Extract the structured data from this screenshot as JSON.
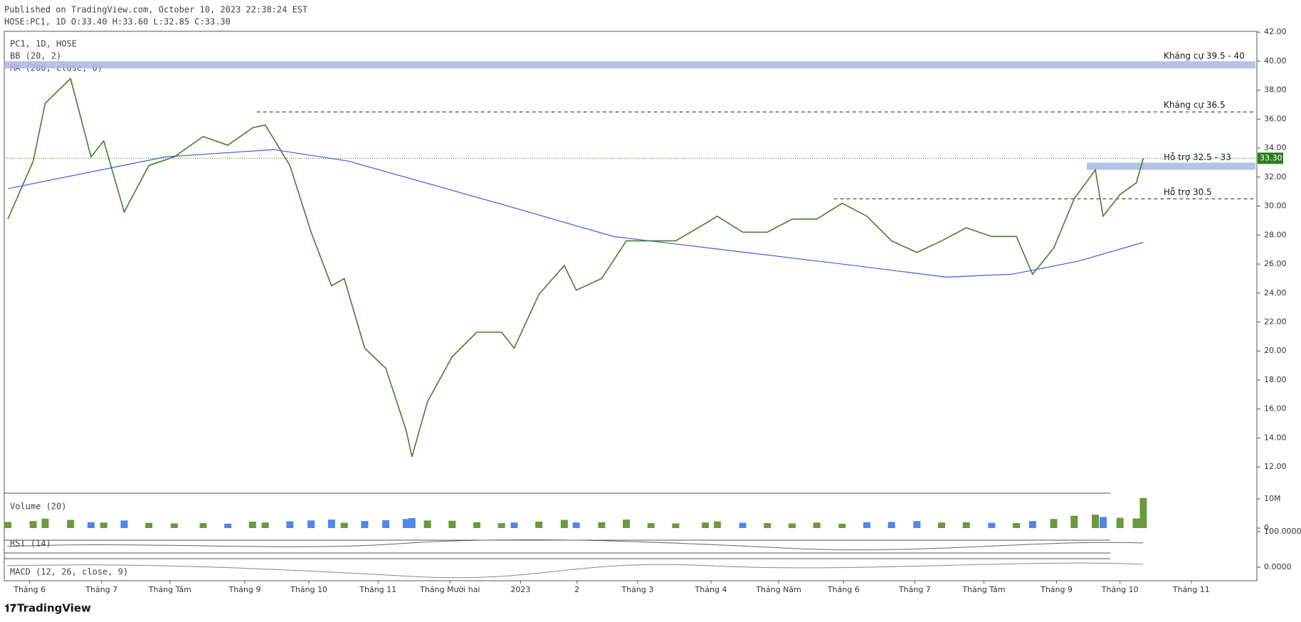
{
  "header": {
    "published": "Published on TradingView.com, October 10, 2023 22:38:24 EST",
    "ohlc": "HOSE:PC1, 1D O:33.40 H:33.60 L:32.85 C:33.30"
  },
  "footer": {
    "brand": "TradingView"
  },
  "chart_data": [
    {
      "type": "line",
      "series": [
        {
          "name": "PC1, 1D, HOSE",
          "color": "#4b7a2b",
          "x": [
            -0.31,
            0.05,
            0.22,
            0.58,
            0.87,
            1.05,
            1.34,
            1.69,
            2.05,
            2.46,
            2.81,
            3.16,
            3.34,
            3.69,
            3.99,
            4.28,
            4.46,
            4.75,
            5.05,
            5.34,
            5.42,
            5.64,
            5.99,
            6.34,
            6.69,
            6.87,
            7.22,
            7.58,
            7.75,
            8.11,
            8.46,
            8.81,
            9.16,
            9.58,
            9.75,
            10.11,
            10.46,
            10.81,
            11.16,
            11.52,
            11.87,
            12.22,
            12.58,
            12.93,
            13.28,
            13.64,
            13.99,
            14.22,
            14.52,
            14.81,
            15.11,
            15.22,
            15.46,
            15.69,
            15.79
          ],
          "values": [
            29.1,
            33.1,
            37.1,
            38.8,
            33.4,
            34.5,
            29.6,
            32.8,
            33.4,
            34.8,
            34.2,
            35.4,
            35.6,
            32.8,
            28.2,
            24.5,
            25.0,
            20.2,
            18.8,
            14.5,
            12.7,
            16.5,
            19.6,
            21.3,
            21.3,
            20.2,
            23.9,
            25.9,
            24.2,
            25.0,
            27.6,
            27.6,
            27.6,
            28.8,
            29.3,
            28.2,
            28.2,
            29.1,
            29.1,
            30.2,
            29.3,
            27.6,
            26.8,
            27.6,
            28.5,
            27.9,
            27.9,
            25.3,
            27.1,
            30.5,
            32.5,
            29.3,
            30.8,
            31.6,
            33.3
          ]
        },
        {
          "name": "MA (200, close, 0)",
          "color": "#3f5fd6",
          "x": [
            -0.31,
            1.93,
            3.46,
            4.52,
            6.64,
            8.28,
            10.16,
            11.69,
            12.99,
            13.93,
            14.87,
            15.79
          ],
          "values": [
            31.2,
            33.4,
            33.9,
            33.1,
            30.2,
            27.9,
            26.8,
            25.9,
            25.1,
            25.3,
            26.2,
            27.5
          ]
        }
      ],
      "indicator": "BB (20, 2)",
      "xlim": [
        -0.35,
        17.38
      ],
      "ylim": [
        10.19,
        42.06
      ],
      "xticks": [
        {
          "value": 0,
          "label": "Tháng 6"
        },
        {
          "value": 1.02,
          "label": "Tháng 7"
        },
        {
          "value": 1.99,
          "label": "Tháng Tám"
        },
        {
          "value": 3.05,
          "label": "Tháng 9"
        },
        {
          "value": 3.96,
          "label": "Tháng 10"
        },
        {
          "value": 4.94,
          "label": "Tháng 11"
        },
        {
          "value": 5.96,
          "label": "Tháng Mười hai"
        },
        {
          "value": 6.96,
          "label": "2023"
        },
        {
          "value": 7.76,
          "label": "2"
        },
        {
          "value": 8.62,
          "label": "Tháng 3"
        },
        {
          "value": 9.66,
          "label": "Tháng 4"
        },
        {
          "value": 10.62,
          "label": "Tháng Năm"
        },
        {
          "value": 11.54,
          "label": "Tháng 6"
        },
        {
          "value": 12.55,
          "label": "Tháng 7"
        },
        {
          "value": 13.53,
          "label": "Tháng Tám"
        },
        {
          "value": 14.56,
          "label": "Tháng 9"
        },
        {
          "value": 15.46,
          "label": "Tháng 10"
        },
        {
          "value": 16.47,
          "label": "Tháng 11"
        }
      ],
      "yticks": [
        {
          "value": 12,
          "label": "12.00"
        },
        {
          "value": 14,
          "label": "14.00"
        },
        {
          "value": 16,
          "label": "16.00"
        },
        {
          "value": 18,
          "label": "18.00"
        },
        {
          "value": 20,
          "label": "20.00"
        },
        {
          "value": 22,
          "label": "22.00"
        },
        {
          "value": 24,
          "label": "24.00"
        },
        {
          "value": 26,
          "label": "26.00"
        },
        {
          "value": 28,
          "label": "28.00"
        },
        {
          "value": 30,
          "label": "30.00"
        },
        {
          "value": 32,
          "label": "32.00"
        },
        {
          "value": 34,
          "label": "34.00"
        },
        {
          "value": 36,
          "label": "36.00"
        },
        {
          "value": 38,
          "label": "38.00"
        },
        {
          "value": 40,
          "label": "40.00"
        },
        {
          "value": 42,
          "label": "42.00"
        }
      ],
      "zones": [
        {
          "label": "Kháng cự 39.5 - 40",
          "from": 39.5,
          "to": 40
        },
        {
          "label": "Hỗ trợ 32.5 - 33",
          "from": 32.5,
          "to": 33,
          "start": 14.99
        }
      ],
      "levels": [
        {
          "label": "Kháng cự 36.5",
          "value": 36.5,
          "start": 3.22
        },
        {
          "label": "Hỗ trợ 30.5",
          "value": 30.5,
          "start": 11.4
        }
      ],
      "last_value": 33.3,
      "last_value_label": "33.30",
      "last_color": "#2e7d20"
    },
    {
      "type": "bar",
      "title": "Volume (20)",
      "color": "#4f86e8",
      "up_color": "#6a9a3c",
      "x": [
        -0.31,
        0.05,
        0.22,
        0.58,
        0.87,
        1.05,
        1.34,
        1.69,
        2.05,
        2.46,
        2.81,
        3.16,
        3.34,
        3.69,
        3.99,
        4.28,
        4.46,
        4.75,
        5.05,
        5.34,
        5.42,
        5.64,
        5.99,
        6.34,
        6.69,
        6.87,
        7.22,
        7.58,
        7.75,
        8.11,
        8.46,
        8.81,
        9.16,
        9.58,
        9.75,
        10.11,
        10.46,
        10.81,
        11.16,
        11.52,
        11.87,
        12.22,
        12.58,
        12.93,
        13.28,
        13.64,
        13.99,
        14.22,
        14.52,
        14.81,
        15.11,
        15.22,
        15.46,
        15.69,
        15.79
      ],
      "values": [
        2100000,
        2400000,
        3200000,
        2800000,
        2000000,
        1900000,
        2600000,
        1800000,
        1600000,
        1700000,
        1500000,
        2200000,
        1900000,
        2300000,
        2600000,
        2900000,
        1800000,
        2400000,
        2700000,
        3100000,
        3400000,
        2600000,
        2500000,
        2000000,
        1700000,
        1900000,
        2200000,
        2800000,
        1900000,
        2000000,
        2900000,
        1700000,
        1600000,
        1900000,
        2300000,
        1800000,
        1700000,
        1600000,
        1900000,
        1500000,
        2000000,
        2100000,
        2400000,
        1900000,
        2000000,
        1800000,
        1700000,
        2400000,
        3100000,
        4200000,
        4600000,
        3800000,
        3500000,
        3300000,
        10300000
      ],
      "ylim": [
        0,
        11700000
      ],
      "yticks": [
        {
          "value": 10000000,
          "label": "10M"
        },
        0
      ]
    },
    {
      "type": "line",
      "title": "RSI (14)",
      "ylim": [
        0,
        100
      ],
      "yticks": [
        {
          "value": 100,
          "label": "100.0000"
        }
      ]
    },
    {
      "type": "line",
      "title": "MACD (12, 26, close, 9)",
      "ylim": [
        -1,
        1
      ],
      "yticks": [
        {
          "value": 0,
          "label": "0.0000"
        }
      ]
    }
  ]
}
